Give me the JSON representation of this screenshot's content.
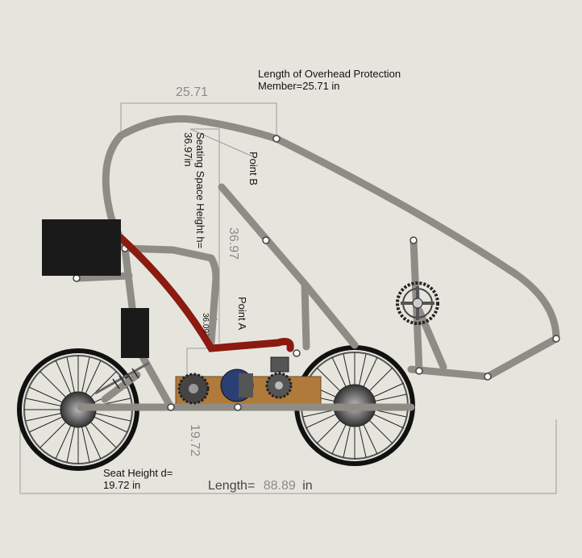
{
  "labels": {
    "overhead_line1": "Length of Overhead Protection",
    "overhead_line2": "Member=25.71 in",
    "overhead_dim": "25.71",
    "point_b": "Point B",
    "point_a": "Point A",
    "seating_line1": "Seating Space Height h=",
    "seating_line2": "36.97in",
    "seating_dim": "36.97",
    "seat_angle": "36.09°",
    "seat_height_line1": "Seat Height d=",
    "seat_height_line2": "19.72 in",
    "seat_height_dim": "19.72",
    "length_prefix": "Length=",
    "length_value": "88.89",
    "length_unit": "in"
  },
  "colors": {
    "background": "#e6e5dd",
    "frame": "#8f8c86",
    "seat": "#8b1a10",
    "motor": "#2a3f73",
    "board": "#b07a3a",
    "battery": "#1a1a1a"
  }
}
